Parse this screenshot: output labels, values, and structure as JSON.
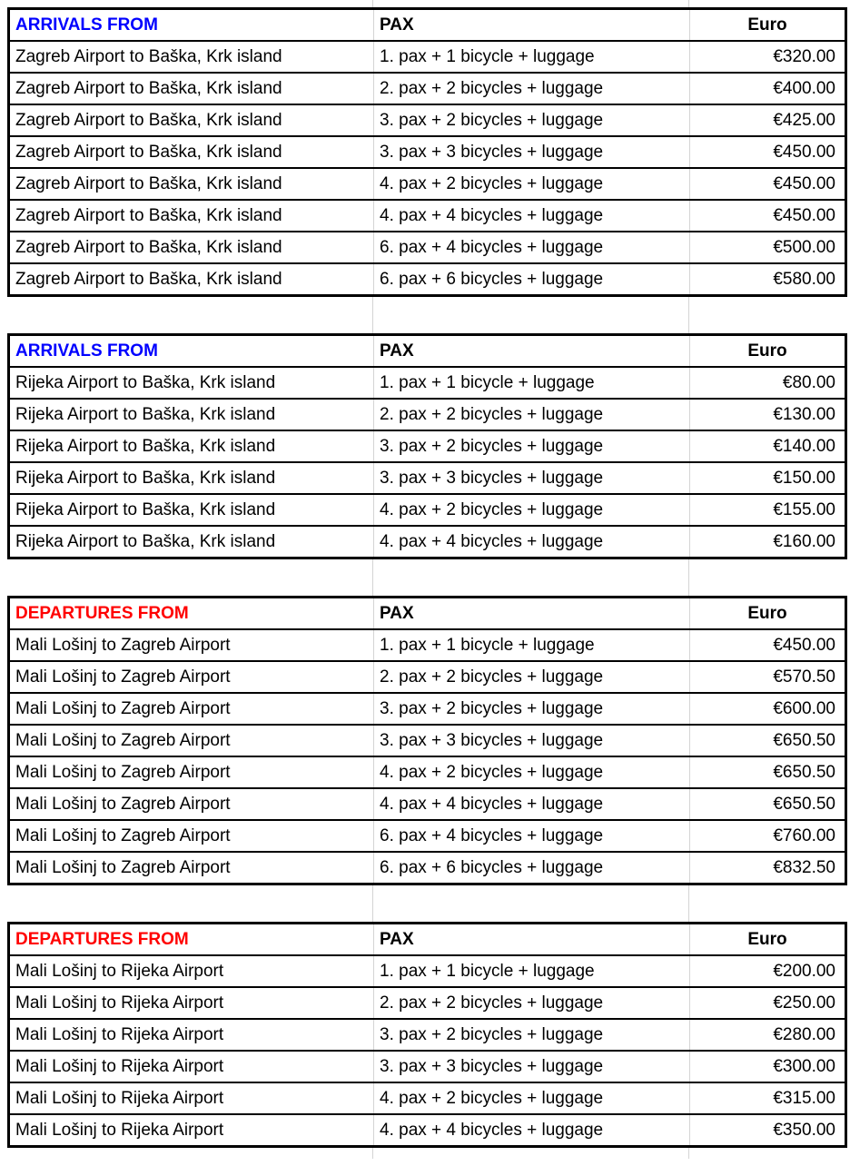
{
  "colors": {
    "arrivals_title": "#0000ff",
    "departures_title": "#ff0000",
    "body_text": "#000000",
    "table_border": "#000000",
    "gridline": "#d4d4d4"
  },
  "tables": [
    {
      "title": "ARRIVALS FROM",
      "title_color": "#0000ff",
      "pax_header": "PAX",
      "euro_header": "Euro",
      "rows": [
        {
          "route": "Zagreb Airport to Baška, Krk island",
          "pax": "1. pax + 1 bicycle + luggage",
          "price": "€320.00"
        },
        {
          "route": "Zagreb Airport to Baška, Krk island",
          "pax": "2. pax + 2 bicycles + luggage",
          "price": "€400.00"
        },
        {
          "route": "Zagreb Airport to Baška, Krk island",
          "pax": "3. pax + 2 bicycles + luggage",
          "price": "€425.00"
        },
        {
          "route": "Zagreb Airport to Baška, Krk island",
          "pax": "3. pax + 3 bicycles + luggage",
          "price": "€450.00"
        },
        {
          "route": "Zagreb Airport to Baška, Krk island",
          "pax": "4. pax + 2 bicycles + luggage",
          "price": "€450.00"
        },
        {
          "route": "Zagreb Airport to Baška, Krk island",
          "pax": "4. pax + 4 bicycles + luggage",
          "price": "€450.00"
        },
        {
          "route": "Zagreb Airport to Baška, Krk island",
          "pax": "6. pax + 4 bicycles + luggage",
          "price": "€500.00"
        },
        {
          "route": "Zagreb Airport to Baška, Krk island",
          "pax": "6. pax + 6 bicycles + luggage",
          "price": "€580.00"
        }
      ]
    },
    {
      "title": "ARRIVALS FROM",
      "title_color": "#0000ff",
      "pax_header": "PAX",
      "euro_header": "Euro",
      "rows": [
        {
          "route": "Rijeka Airport to Baška, Krk island",
          "pax": "1. pax + 1 bicycle + luggage",
          "price": "€80.00"
        },
        {
          "route": "Rijeka Airport to Baška, Krk island",
          "pax": "2. pax + 2 bicycles + luggage",
          "price": "€130.00"
        },
        {
          "route": "Rijeka Airport to Baška, Krk island",
          "pax": "3. pax + 2 bicycles + luggage",
          "price": "€140.00"
        },
        {
          "route": "Rijeka Airport to Baška, Krk island",
          "pax": "3. pax + 3 bicycles + luggage",
          "price": "€150.00"
        },
        {
          "route": "Rijeka Airport to Baška, Krk island",
          "pax": "4. pax + 2 bicycles + luggage",
          "price": "€155.00"
        },
        {
          "route": "Rijeka Airport to Baška, Krk island",
          "pax": "4. pax + 4 bicycles + luggage",
          "price": "€160.00"
        }
      ]
    },
    {
      "title": "DEPARTURES FROM",
      "title_color": "#ff0000",
      "pax_header": "PAX",
      "euro_header": "Euro",
      "rows": [
        {
          "route": "Mali Lošinj to Zagreb Airport",
          "pax": "1. pax + 1 bicycle + luggage",
          "price": "€450.00"
        },
        {
          "route": "Mali Lošinj to Zagreb Airport",
          "pax": "2. pax + 2 bicycles + luggage",
          "price": "€570.50"
        },
        {
          "route": "Mali Lošinj to Zagreb Airport",
          "pax": "3. pax + 2 bicycles + luggage",
          "price": "€600.00"
        },
        {
          "route": "Mali Lošinj to Zagreb Airport",
          "pax": "3. pax + 3 bicycles + luggage",
          "price": "€650.50"
        },
        {
          "route": "Mali Lošinj to Zagreb Airport",
          "pax": "4. pax + 2 bicycles + luggage",
          "price": "€650.50"
        },
        {
          "route": "Mali Lošinj to Zagreb Airport",
          "pax": "4. pax + 4 bicycles + luggage",
          "price": "€650.50"
        },
        {
          "route": "Mali Lošinj to Zagreb Airport",
          "pax": "6. pax + 4 bicycles + luggage",
          "price": "€760.00"
        },
        {
          "route": "Mali Lošinj to Zagreb Airport",
          "pax": "6. pax + 6 bicycles + luggage",
          "price": "€832.50"
        }
      ]
    },
    {
      "title": "DEPARTURES FROM",
      "title_color": "#ff0000",
      "pax_header": "PAX",
      "euro_header": "Euro",
      "rows": [
        {
          "route": "Mali Lošinj to Rijeka Airport",
          "pax": "1. pax + 1 bicycle + luggage",
          "price": "€200.00"
        },
        {
          "route": "Mali Lošinj to Rijeka Airport",
          "pax": "2. pax + 2 bicycles + luggage",
          "price": "€250.00"
        },
        {
          "route": "Mali Lošinj to Rijeka Airport",
          "pax": "3. pax + 2 bicycles + luggage",
          "price": "€280.00"
        },
        {
          "route": "Mali Lošinj to Rijeka Airport",
          "pax": "3. pax + 3 bicycles + luggage",
          "price": "€300.00"
        },
        {
          "route": "Mali Lošinj to Rijeka Airport",
          "pax": "4. pax + 2 bicycles + luggage",
          "price": "€315.00"
        },
        {
          "route": "Mali Lošinj to Rijeka Airport",
          "pax": "4. pax + 4 bicycles + luggage",
          "price": "€350.00"
        }
      ]
    }
  ]
}
